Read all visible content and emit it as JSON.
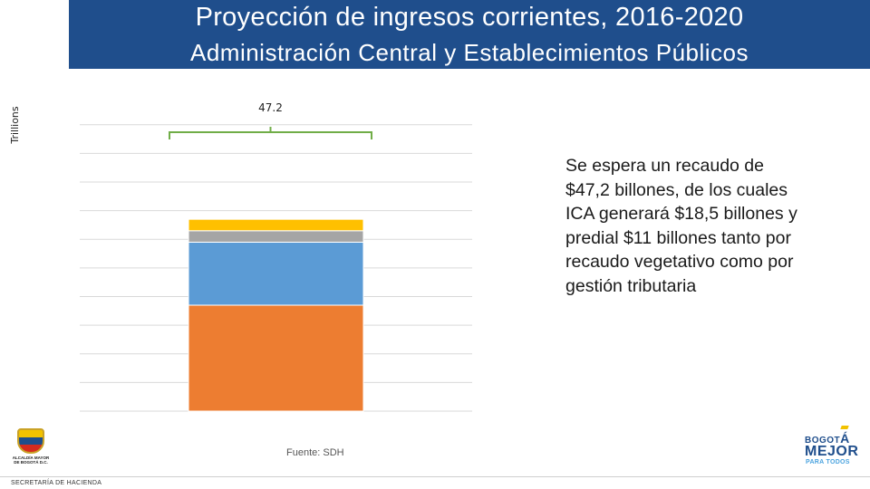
{
  "header": {
    "title": "Proyección de ingresos corrientes, 2016-2020",
    "subtitle": "Administración Central y Establecimientos Públicos"
  },
  "chart_data": {
    "type": "bar",
    "stacked": true,
    "categories": [
      ""
    ],
    "ylabel": "Trillions",
    "ylim": [
      0,
      52.5
    ],
    "grid": true,
    "series": [
      {
        "values": [
          18.5
        ],
        "color": "#ed7d31"
      },
      {
        "values": [
          11.0
        ],
        "color": "#5b9bd5"
      },
      {
        "values": [
          2.0
        ],
        "color": "#a5a5a5"
      },
      {
        "values": [
          2.0
        ],
        "color": "#ffc000"
      }
    ],
    "total_label": "47.2",
    "bracket_color": "#70ad47"
  },
  "side_text": "Se espera un recaudo de $47,2 billones, de los cuales ICA generará $18,5 billones y predial $11 billones tanto por recaudo vegetativo como por gestión tributaria",
  "source": "Fuente: SDH",
  "footer": "SECRETARÍA DE HACIENDA",
  "logos": {
    "alcaldia_text": "ALCALDÍA MAYOR DE BOGOTÁ D.C.",
    "bogota_line1_a": "BOGOT",
    "bogota_line1_b": "Á",
    "bogota_line2": "MEJOR",
    "bogota_line3": "PARA TODOS"
  }
}
